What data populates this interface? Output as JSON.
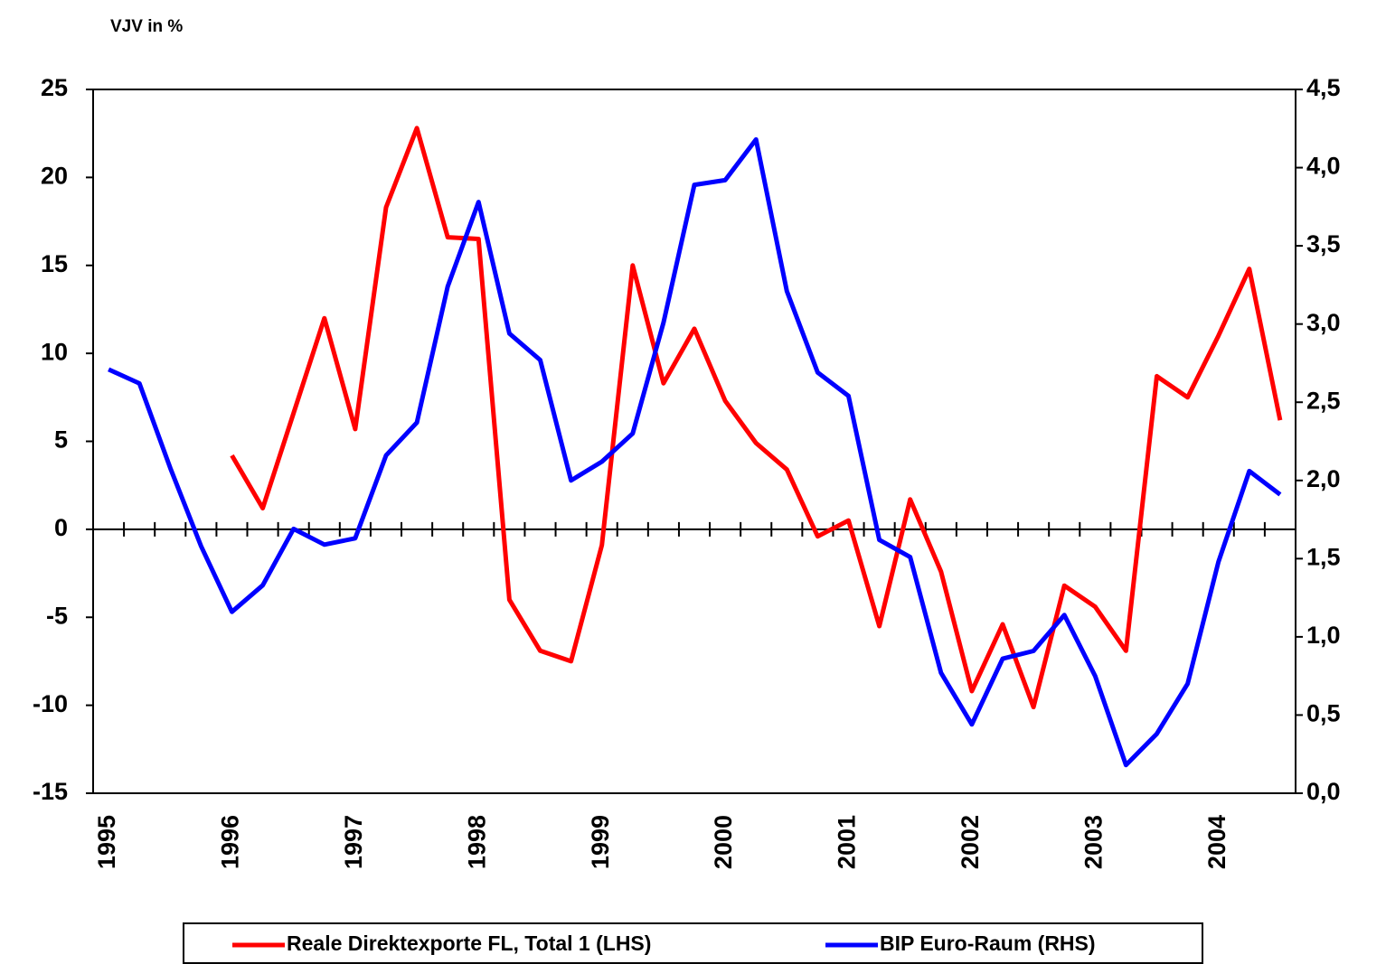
{
  "chart_data": {
    "type": "line",
    "y_axis_label": "VJV in %",
    "categories": [
      "1995",
      null,
      null,
      null,
      "1996",
      null,
      null,
      null,
      "1997",
      null,
      null,
      null,
      "1998",
      null,
      null,
      null,
      "1999",
      null,
      null,
      null,
      "2000",
      null,
      null,
      null,
      "2001",
      null,
      null,
      null,
      "2002",
      null,
      null,
      null,
      "2003",
      null,
      null,
      null,
      "2004",
      null,
      null
    ],
    "series": [
      {
        "name": "Reale Direktexporte FL, Total 1 (LHS)",
        "color": "#ff0000",
        "values": [
          null,
          null,
          null,
          null,
          4.2,
          1.2,
          6.6,
          12.0,
          5.7,
          18.3,
          22.8,
          16.6,
          16.5,
          -4.0,
          -6.9,
          -7.5,
          -0.9,
          15.0,
          8.3,
          11.4,
          7.3,
          4.9,
          3.4,
          -0.4,
          0.5,
          -5.5,
          1.7,
          -2.4,
          -9.2,
          -5.4,
          -10.1,
          -3.2,
          -4.4,
          -6.9,
          8.7,
          7.5,
          11.0,
          14.8,
          6.2
        ]
      },
      {
        "name": "BIP Euro-Raum (RHS)",
        "color": "#0000ff",
        "axis": "y2",
        "values": [
          2.71,
          2.62,
          2.08,
          1.58,
          1.16,
          1.33,
          1.69,
          1.59,
          1.63,
          2.16,
          2.37,
          3.24,
          3.78,
          2.94,
          2.77,
          2.0,
          2.12,
          2.3,
          3.01,
          3.89,
          3.92,
          4.18,
          3.21,
          2.69,
          2.54,
          1.62,
          1.51,
          0.77,
          0.44,
          0.86,
          0.91,
          1.14,
          0.75,
          0.18,
          0.38,
          0.7,
          1.48,
          2.06,
          1.91
        ]
      }
    ],
    "ylim": [
      -15,
      25
    ],
    "yticks": [
      25,
      20,
      15,
      10,
      5,
      0,
      -5,
      -10,
      -15
    ],
    "y2lim": [
      0,
      4.5
    ],
    "y2ticks": [
      {
        "value": 4.5,
        "label": "4,5"
      },
      {
        "value": 4.0,
        "label": "4,0"
      },
      {
        "value": 3.5,
        "label": "3,5"
      },
      {
        "value": 3.0,
        "label": "3,0"
      },
      {
        "value": 2.5,
        "label": "2,5"
      },
      {
        "value": 2.0,
        "label": "2,0"
      },
      {
        "value": 1.5,
        "label": "1,5"
      },
      {
        "value": 1.0,
        "label": "1,0"
      },
      {
        "value": 0.5,
        "label": "0,5"
      },
      {
        "value": 0.0,
        "label": "0,0"
      }
    ],
    "legend": "bottom",
    "grid": false
  }
}
